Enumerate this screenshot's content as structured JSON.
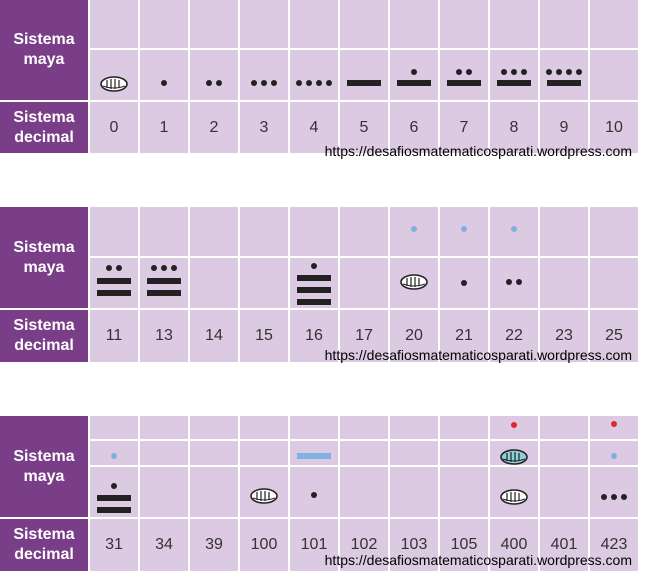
{
  "labels": {
    "maya": "Sistema maya",
    "decimal": "Sistema decimal"
  },
  "watermark": "https://desafiosmatematicosparati.wordpress.com",
  "colors": {
    "header_bg": "#7a3d88",
    "cell_bg": "#dcc9e2",
    "glyph": "#222222",
    "blue": "#7fb2e0",
    "red": "#e0262e"
  },
  "tables": [
    {
      "decimals": [
        "0",
        "1",
        "2",
        "3",
        "4",
        "5",
        "6",
        "7",
        "8",
        "9",
        "10"
      ]
    },
    {
      "decimals": [
        "11",
        "13",
        "14",
        "15",
        "16",
        "17",
        "20",
        "21",
        "22",
        "23",
        "25"
      ]
    },
    {
      "decimals": [
        "31",
        "34",
        "39",
        "100",
        "101",
        "102",
        "103",
        "105",
        "400",
        "401",
        "423"
      ]
    }
  ]
}
